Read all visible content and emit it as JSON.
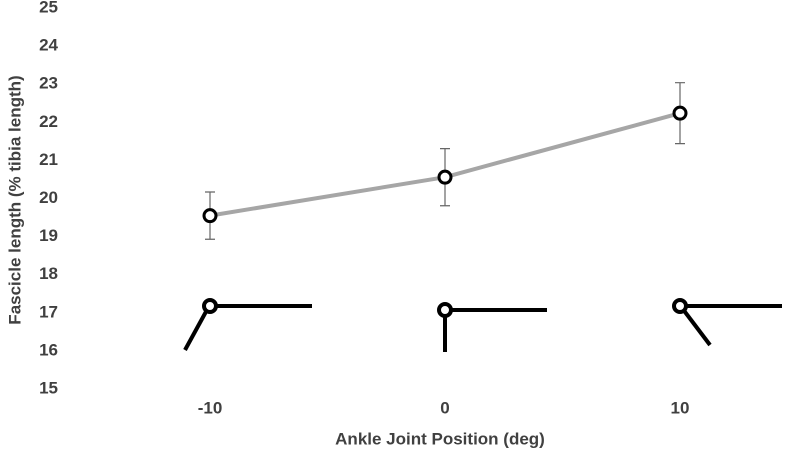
{
  "chart_data": {
    "type": "line",
    "x_label": "Ankle Joint Position (deg)",
    "y_label": "Fascicle length (% tibia length)",
    "categories": [
      "-10",
      "0",
      "10"
    ],
    "series": [
      {
        "color": "#a6a6a6",
        "values": [
          19.55,
          20.56,
          22.24
        ],
        "errors": [
          0.62,
          0.75,
          0.8
        ]
      }
    ],
    "ylim": [
      15,
      25
    ],
    "yticks": [
      15,
      16,
      17,
      18,
      19,
      20,
      21,
      22,
      23,
      24,
      25
    ],
    "grid": false
  }
}
